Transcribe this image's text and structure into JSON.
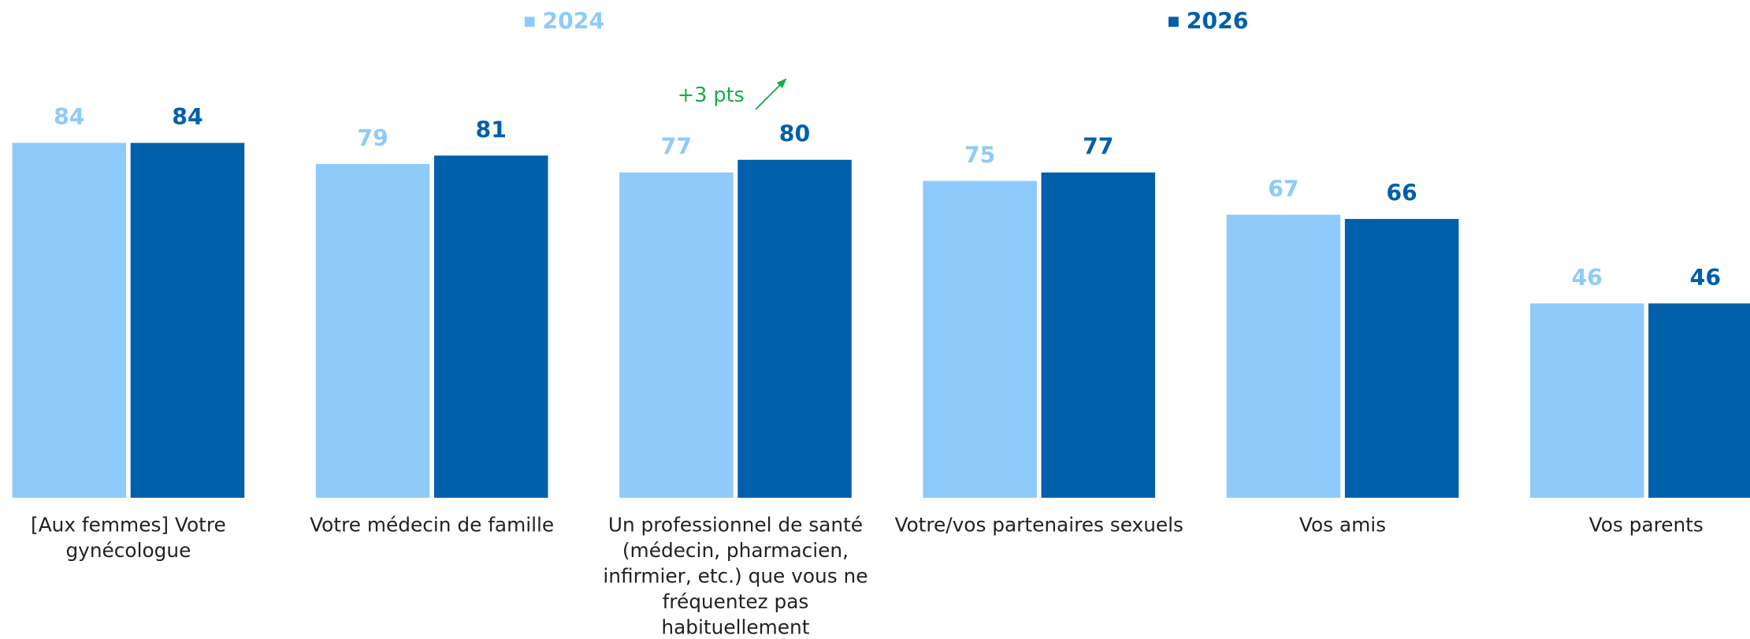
{
  "chart_data": {
    "type": "bar",
    "categories": [
      "[Aux femmes] Votre gynécologue",
      "Votre médecin de famille",
      "Un professionnel de santé (médecin, pharmacien, infirmier, etc.) que vous ne fréquentez pas habituellement",
      "Votre/vos partenaires sexuels",
      "Vos amis",
      "Vos parents"
    ],
    "series": [
      {
        "name": "2024",
        "color": "#8ecbfa",
        "values": [
          84,
          79,
          77,
          75,
          67,
          46
        ]
      },
      {
        "name": "2026",
        "color": "#005faa",
        "values": [
          84,
          81,
          80,
          77,
          66,
          46
        ]
      }
    ],
    "annotation": "+3 pts",
    "annotation_color": "#1aaa4a",
    "legend": "top"
  }
}
